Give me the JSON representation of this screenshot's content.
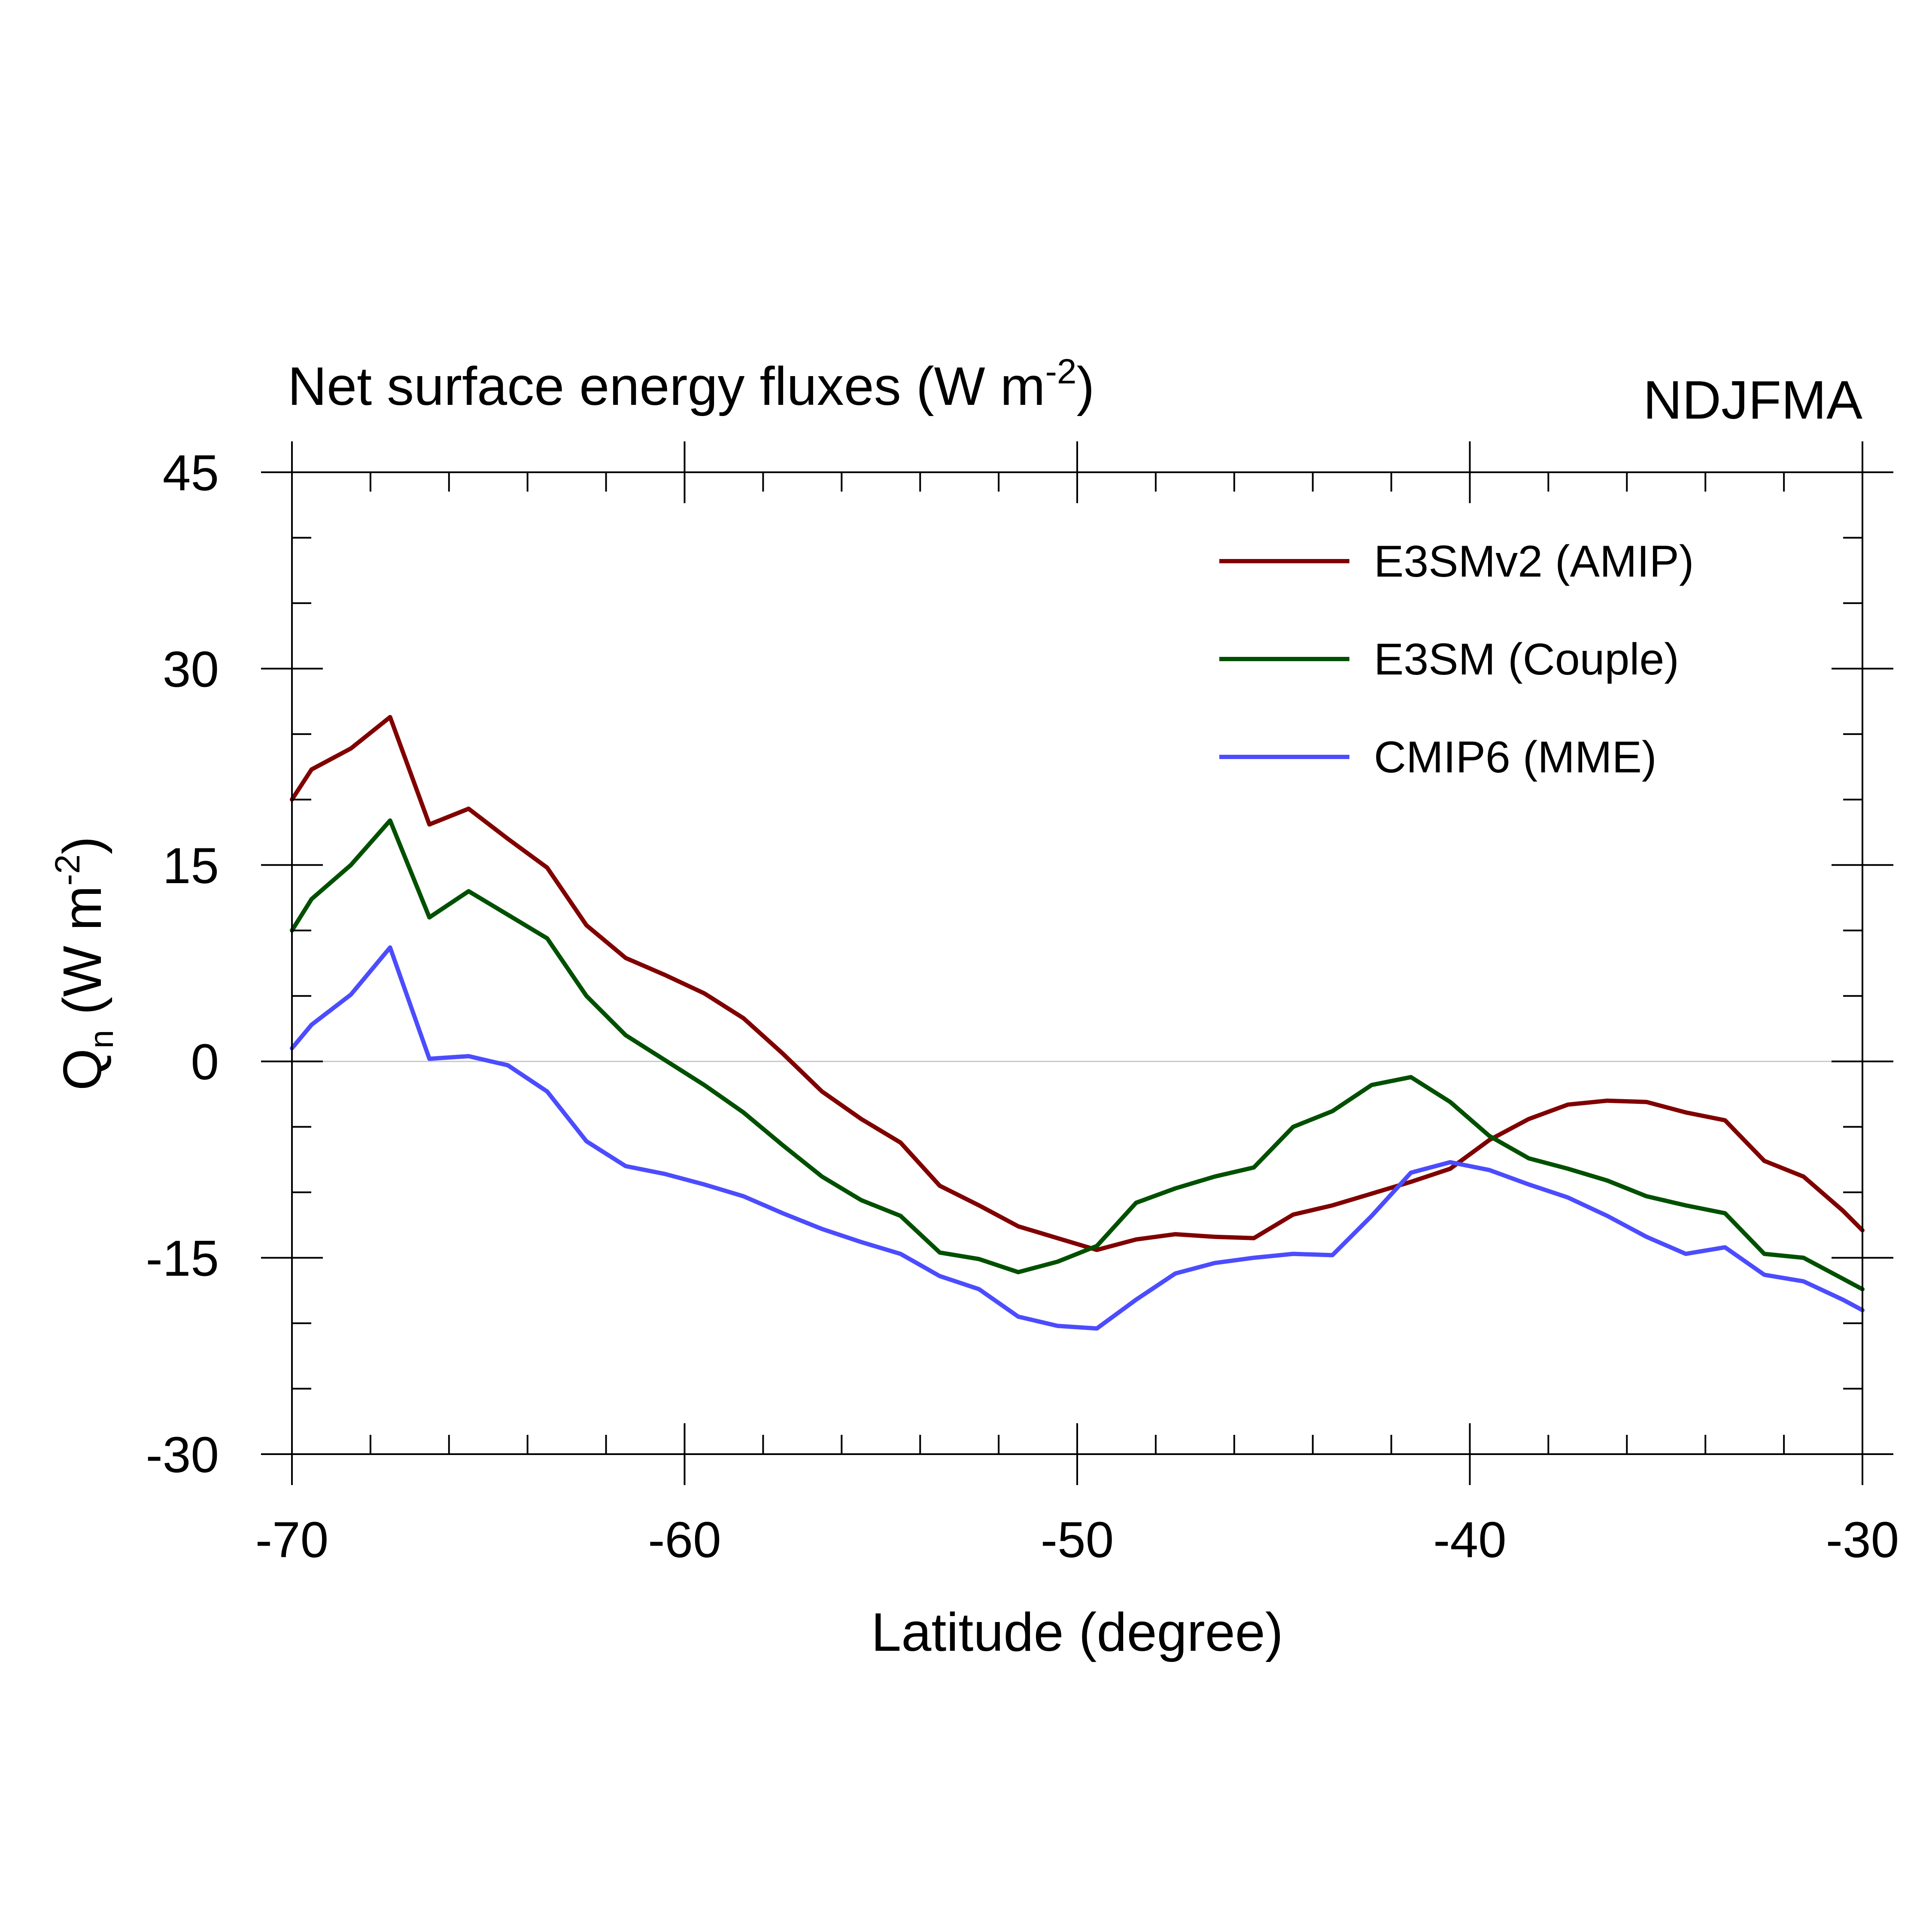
{
  "chart_data": {
    "type": "line",
    "title": "Net surface energy fluxes (W m",
    "title_sup": "-2",
    "title_end": ")",
    "season": "NDJFMA",
    "xlabel": "Latitude (degree)",
    "ylabel_q": "Q",
    "ylabel_sub": "n",
    "ylabel_unit": " (W m",
    "ylabel_sup": "-2",
    "ylabel_end": ")",
    "xlim": [
      -70,
      -30
    ],
    "ylim": [
      -30,
      45
    ],
    "xticks": [
      -70,
      -60,
      -50,
      -40,
      -30
    ],
    "xtick_labels": [
      "-70",
      "-60",
      "-50",
      "-40",
      "-30"
    ],
    "yticks": [
      -30,
      -15,
      0,
      15,
      30,
      45
    ],
    "ytick_labels": [
      "-30",
      "-15",
      "0",
      "15",
      "30",
      "45"
    ],
    "x_minor_step": 2,
    "y_minor_step": 5,
    "zero_line": true,
    "legend_position": "top-right",
    "x": [
      -70,
      -69.5,
      -68.5,
      -67.5,
      -66.5,
      -65.5,
      -64.5,
      -63.5,
      -62.5,
      -61.5,
      -60.5,
      -59.5,
      -58.5,
      -57.5,
      -56.5,
      -55.5,
      -54.5,
      -53.5,
      -52.5,
      -51.5,
      -50.5,
      -49.5,
      -48.5,
      -47.5,
      -46.5,
      -45.5,
      -44.5,
      -43.5,
      -42.5,
      -41.5,
      -40.5,
      -39.5,
      -38.5,
      -37.5,
      -36.5,
      -35.5,
      -34.5,
      -33.5,
      -32.5,
      -31.5,
      -30.5,
      -30
    ],
    "series": [
      {
        "name": "E3SMv2 (AMIP)",
        "color": "#800000",
        "values": [
          20.0,
          22.3,
          23.9,
          26.3,
          18.1,
          19.3,
          17.0,
          14.8,
          10.4,
          7.9,
          6.6,
          5.2,
          3.3,
          0.6,
          -2.3,
          -4.4,
          -6.2,
          -9.5,
          -11.0,
          -12.6,
          -13.5,
          -14.4,
          -13.6,
          -13.2,
          -13.4,
          -13.5,
          -11.7,
          -11.0,
          -10.1,
          -9.2,
          -8.2,
          -6.0,
          -4.4,
          -3.3,
          -3.0,
          -3.1,
          -3.9,
          -4.5,
          -7.6,
          -8.8,
          -11.4,
          -12.9
        ]
      },
      {
        "name": "E3SM (Couple)",
        "color": "#005000",
        "values": [
          10.0,
          12.4,
          15.0,
          18.4,
          11.0,
          13.0,
          11.2,
          9.4,
          5.0,
          2.0,
          0.1,
          -1.8,
          -3.9,
          -6.4,
          -8.8,
          -10.6,
          -11.8,
          -14.6,
          -15.1,
          -16.1,
          -15.3,
          -14.1,
          -10.8,
          -9.7,
          -8.8,
          -8.1,
          -5.0,
          -3.8,
          -1.8,
          -1.2,
          -3.1,
          -5.7,
          -7.4,
          -8.2,
          -9.1,
          -10.3,
          -11.0,
          -11.6,
          -14.7,
          -15.0,
          -16.6,
          -17.4
        ]
      },
      {
        "name": "CMIP6 (MME)",
        "color": "#4c4cff",
        "values": [
          1.0,
          2.8,
          5.1,
          8.7,
          0.2,
          0.4,
          -0.3,
          -2.3,
          -6.1,
          -8.0,
          -8.6,
          -9.4,
          -10.3,
          -11.6,
          -12.8,
          -13.8,
          -14.7,
          -16.4,
          -17.4,
          -19.5,
          -20.2,
          -20.4,
          -18.2,
          -16.2,
          -15.4,
          -15.0,
          -14.7,
          -14.8,
          -11.8,
          -8.5,
          -7.7,
          -8.3,
          -9.4,
          -10.4,
          -11.8,
          -13.4,
          -14.7,
          -14.2,
          -16.3,
          -16.8,
          -18.2,
          -19.0
        ]
      }
    ]
  }
}
